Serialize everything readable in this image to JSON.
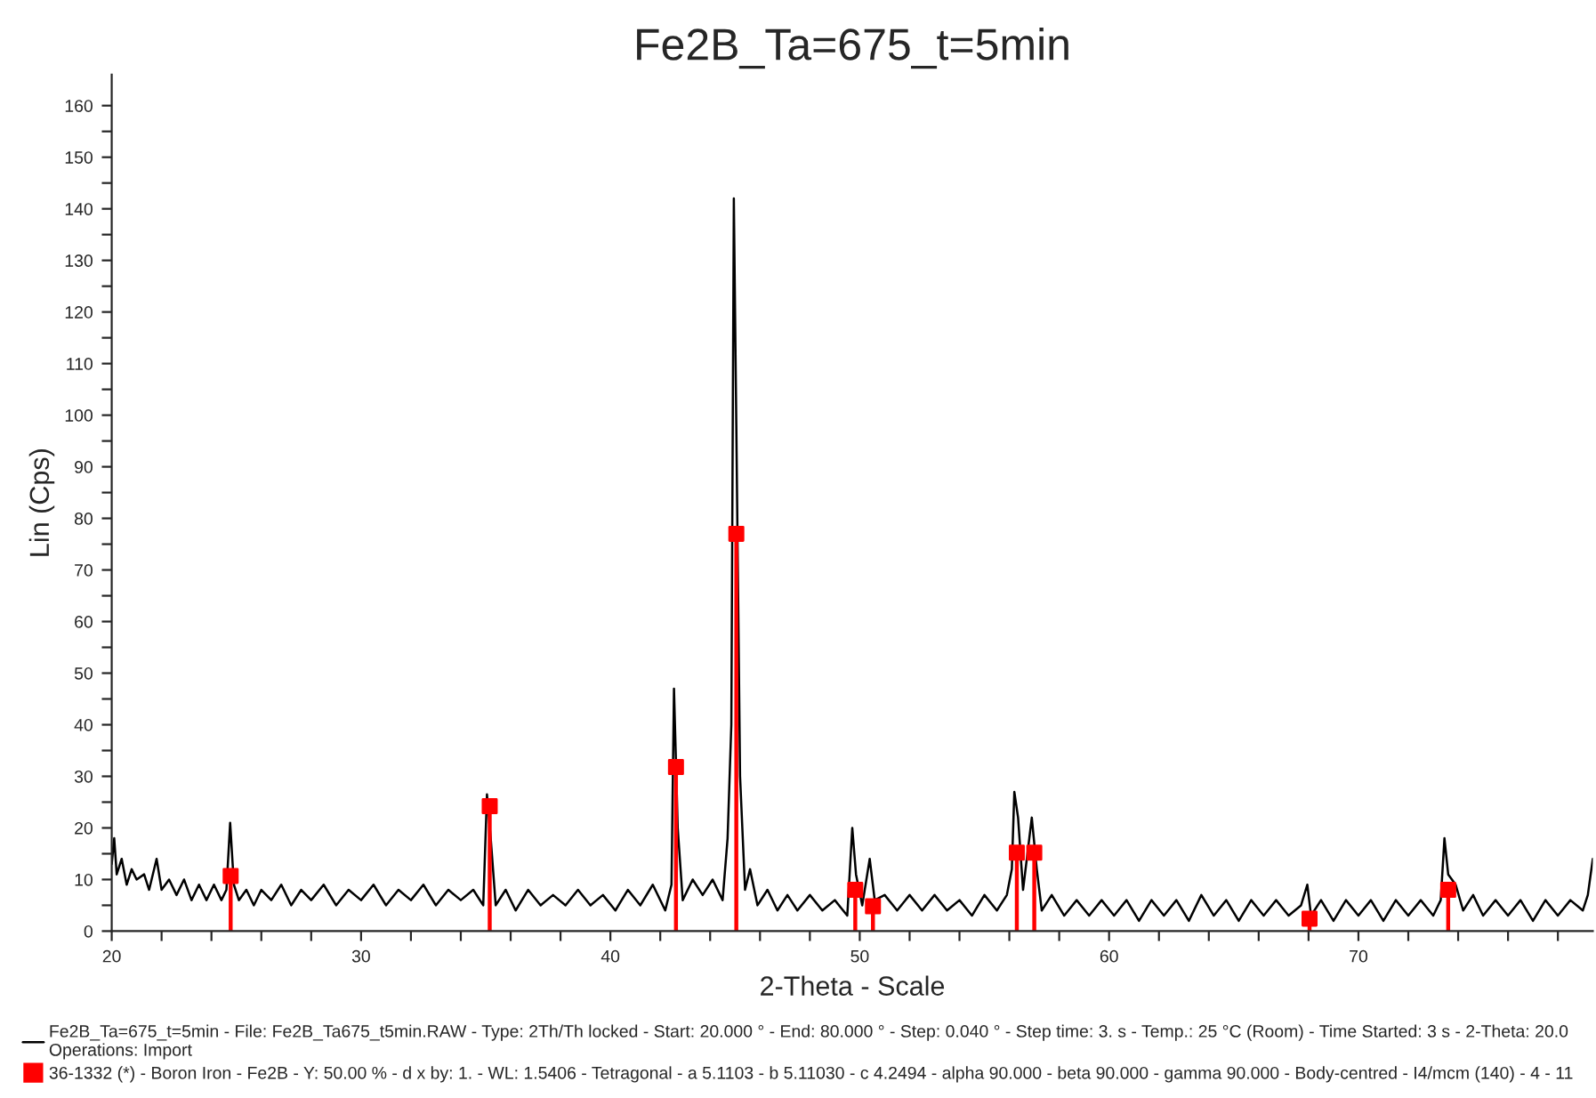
{
  "chart_data": {
    "type": "line",
    "title": "Fe2B_Ta=675_t=5min",
    "xlabel": "2-Theta - Scale",
    "ylabel": "Lin (Cps)",
    "xlim": [
      20,
      79.4
    ],
    "ylim": [
      0,
      166
    ],
    "xticks": [
      {
        "value": 20,
        "label": "20"
      },
      {
        "value": 22,
        "label": null
      },
      {
        "value": 24,
        "label": null
      },
      {
        "value": 26,
        "label": null
      },
      {
        "value": 28,
        "label": null
      },
      {
        "value": 30,
        "label": "30"
      },
      {
        "value": 32,
        "label": null
      },
      {
        "value": 34,
        "label": null
      },
      {
        "value": 36,
        "label": null
      },
      {
        "value": 38,
        "label": null
      },
      {
        "value": 40,
        "label": "40"
      },
      {
        "value": 42,
        "label": null
      },
      {
        "value": 44,
        "label": null
      },
      {
        "value": 46,
        "label": null
      },
      {
        "value": 48,
        "label": null
      },
      {
        "value": 50,
        "label": "50"
      },
      {
        "value": 52,
        "label": null
      },
      {
        "value": 54,
        "label": null
      },
      {
        "value": 56,
        "label": null
      },
      {
        "value": 58,
        "label": null
      },
      {
        "value": 60,
        "label": "60"
      },
      {
        "value": 62,
        "label": null
      },
      {
        "value": 64,
        "label": null
      },
      {
        "value": 66,
        "label": null
      },
      {
        "value": 68,
        "label": null
      },
      {
        "value": 70,
        "label": "70"
      },
      {
        "value": 72,
        "label": null
      },
      {
        "value": 74,
        "label": null
      },
      {
        "value": 76,
        "label": null
      },
      {
        "value": 78,
        "label": null
      }
    ],
    "yticks": [
      0,
      {
        "value": 5,
        "label": null
      },
      10,
      {
        "value": 15,
        "label": null
      },
      20,
      {
        "value": 25,
        "label": null
      },
      30,
      {
        "value": 35,
        "label": null
      },
      40,
      {
        "value": 45,
        "label": null
      },
      50,
      {
        "value": 55,
        "label": null
      },
      60,
      {
        "value": 65,
        "label": null
      },
      70,
      {
        "value": 75,
        "label": null
      },
      80,
      {
        "value": 85,
        "label": null
      },
      90,
      {
        "value": 95,
        "label": null
      },
      100,
      {
        "value": 105,
        "label": null
      },
      110,
      {
        "value": 115,
        "label": null
      },
      120,
      {
        "value": 125,
        "label": null
      },
      130,
      {
        "value": 135,
        "label": null
      },
      140,
      {
        "value": 145,
        "label": null
      },
      150,
      {
        "value": 155,
        "label": null
      },
      160
    ],
    "grid": false,
    "legend": "bottom",
    "series": [
      {
        "name": "Fe2B_Ta=675_t=5min - File: Fe2B_Ta675_t5min.RAW - Type: 2Th/Th locked - Start: 20.000 ° - End: 80.000 ° - Step: 0.040 ° - Step time: 3. s - Temp.: 25 °C (Room) - Time Started: 3 s - 2-Theta: 20.0\nOperations: Import",
        "color": "#000000",
        "marker": "none",
        "x": [
          20.0,
          20.1,
          20.2,
          20.4,
          20.6,
          20.8,
          21.0,
          21.3,
          21.5,
          21.8,
          22.0,
          22.3,
          22.6,
          22.9,
          23.2,
          23.5,
          23.8,
          24.1,
          24.4,
          24.6,
          24.75,
          24.9,
          25.1,
          25.4,
          25.7,
          26.0,
          26.4,
          26.8,
          27.2,
          27.6,
          28.0,
          28.5,
          29.0,
          29.5,
          30.0,
          30.5,
          31.0,
          31.5,
          32.0,
          32.5,
          33.0,
          33.5,
          34.0,
          34.5,
          34.9,
          35.05,
          35.2,
          35.4,
          35.8,
          36.2,
          36.7,
          37.2,
          37.7,
          38.2,
          38.7,
          39.2,
          39.7,
          40.2,
          40.7,
          41.2,
          41.7,
          42.2,
          42.45,
          42.55,
          42.7,
          42.9,
          43.3,
          43.7,
          44.1,
          44.5,
          44.7,
          44.85,
          44.95,
          45.05,
          45.2,
          45.4,
          45.6,
          45.9,
          46.3,
          46.7,
          47.1,
          47.5,
          48.0,
          48.5,
          49.0,
          49.5,
          49.7,
          49.85,
          50.1,
          50.4,
          50.6,
          51.0,
          51.5,
          52.0,
          52.5,
          53.0,
          53.5,
          54.0,
          54.5,
          55.0,
          55.5,
          55.9,
          56.1,
          56.2,
          56.35,
          56.55,
          56.8,
          56.9,
          57.1,
          57.3,
          57.7,
          58.2,
          58.7,
          59.2,
          59.7,
          60.2,
          60.7,
          61.2,
          61.7,
          62.2,
          62.7,
          63.2,
          63.7,
          64.2,
          64.7,
          65.2,
          65.7,
          66.2,
          66.7,
          67.2,
          67.7,
          67.95,
          68.1,
          68.5,
          69.0,
          69.5,
          70.0,
          70.5,
          71.0,
          71.5,
          72.0,
          72.5,
          73.0,
          73.3,
          73.45,
          73.6,
          73.9,
          74.2,
          74.6,
          75.0,
          75.5,
          76.0,
          76.5,
          77.0,
          77.5,
          78.0,
          78.5,
          79.0,
          79.2,
          79.4
        ],
        "values": [
          13,
          18,
          11,
          14,
          9,
          12,
          10,
          11,
          8,
          14,
          8,
          10,
          7,
          10,
          6,
          9,
          6,
          9,
          6,
          8,
          21,
          9,
          6,
          8,
          5,
          8,
          6,
          9,
          5,
          8,
          6,
          9,
          5,
          8,
          6,
          9,
          5,
          8,
          6,
          9,
          5,
          8,
          6,
          8,
          5,
          26.5,
          18,
          5,
          8,
          4,
          8,
          5,
          7,
          5,
          8,
          5,
          7,
          4,
          8,
          5,
          9,
          4,
          9,
          47,
          20,
          6,
          10,
          7,
          10,
          6,
          18,
          40,
          142,
          98,
          30,
          8,
          12,
          5,
          8,
          4,
          7,
          4,
          7,
          4,
          6,
          3,
          20,
          11,
          5,
          14,
          6,
          7,
          4,
          7,
          4,
          7,
          4,
          6,
          3,
          7,
          4,
          7,
          12,
          27,
          22,
          8,
          18,
          22,
          12,
          4,
          7,
          3,
          6,
          3,
          6,
          3,
          6,
          2,
          6,
          3,
          6,
          2,
          7,
          3,
          6,
          2,
          6,
          3,
          6,
          3,
          5,
          9,
          3,
          6,
          2,
          6,
          3,
          6,
          2,
          6,
          3,
          6,
          3,
          6,
          18,
          11,
          9,
          4,
          7,
          3,
          6,
          3,
          6,
          2,
          6,
          3,
          6,
          4,
          7,
          14
        ]
      },
      {
        "name": "36-1332 (*) - Boron Iron - Fe2B - Y: 50.00 % - d x by: 1. - WL: 1.5406 - Tetragonal - a 5.1103 - b 5.11030 - c 4.2494 - alpha 90.000 - beta 90.000 - gamma 90.000 - Body-centred - I4/mcm (140) - 4 - 11",
        "type": "lollipop",
        "color": "#ff0000",
        "marker": "square",
        "x": [
          24.77,
          35.16,
          42.63,
          45.05,
          49.82,
          50.53,
          56.3,
          57.0,
          68.04,
          73.6
        ],
        "values": [
          10.7,
          24.2,
          31.8,
          77,
          8,
          4.8,
          15.2,
          15.2,
          2.4,
          8
        ]
      }
    ]
  }
}
